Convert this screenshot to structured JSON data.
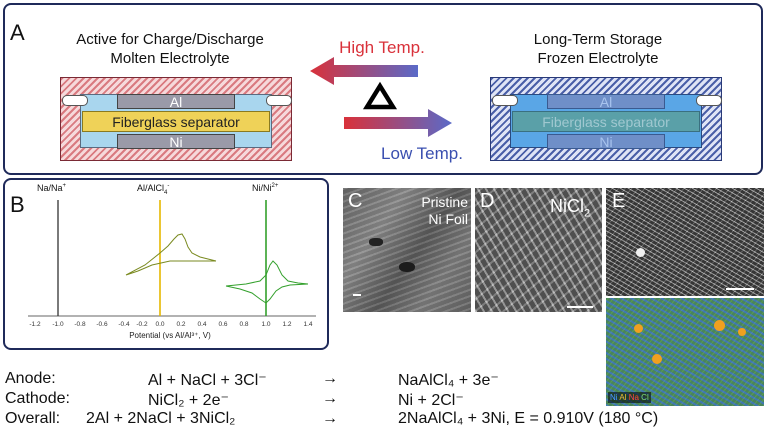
{
  "panel_a": {
    "label": "A",
    "left_title_1": "Active for Charge/Discharge",
    "left_title_2": "Molten Electrolyte",
    "right_title_1": "Long-Term Storage",
    "right_title_2": "Frozen Electrolyte",
    "high_temp": "High Temp.",
    "low_temp": "Low Temp.",
    "delta": "Δ",
    "layer_al": "Al",
    "layer_separator": "Fiberglass separator",
    "layer_ni": "Ni",
    "colors": {
      "hot": "#d9313a",
      "cold": "#3a4fb0"
    }
  },
  "panel_b": {
    "label": "B",
    "ref_na": "Na/Na",
    "ref_na_sup": "+",
    "ref_al": "Al/AlCl",
    "ref_al_sub": "4",
    "ref_al_sup": "-",
    "ref_ni": "Ni/Ni",
    "ref_ni_sup": "2+",
    "xlabel": "Potential (vs Al/Al³⁺, V)",
    "xticks": [
      "-1.2",
      "-1.0",
      "-0.8",
      "-0.6",
      "-0.4",
      "-0.2",
      "0.0",
      "0.2",
      "0.4",
      "0.6",
      "0.8",
      "1.0",
      "1.2",
      "1.4"
    ]
  },
  "panel_c": {
    "label": "C",
    "text_1": "Pristine",
    "text_2": "Ni Foil"
  },
  "panel_d": {
    "label": "D",
    "text": "NiCl",
    "text_sub": "2"
  },
  "panel_e": {
    "label": "E",
    "legend_ni": "Ni",
    "legend_al": "Al",
    "legend_na": "Na",
    "legend_cl": "Cl"
  },
  "equations": [
    {
      "name": "Anode:",
      "left": "Al + NaCl + 3Cl⁻",
      "arrow": "→",
      "right": "NaAlCl₄ + 3e⁻"
    },
    {
      "name": "Cathode:",
      "left": "NiCl₂ + 2e⁻",
      "arrow": "→",
      "right": "Ni + 2Cl⁻"
    },
    {
      "name": "Overall:",
      "left": "2Al + 2NaCl + 3NiCl₂",
      "arrow": "→",
      "right": "2NaAlCl₄ + 3Ni, E = 0.910V (180 °C)"
    }
  ]
}
